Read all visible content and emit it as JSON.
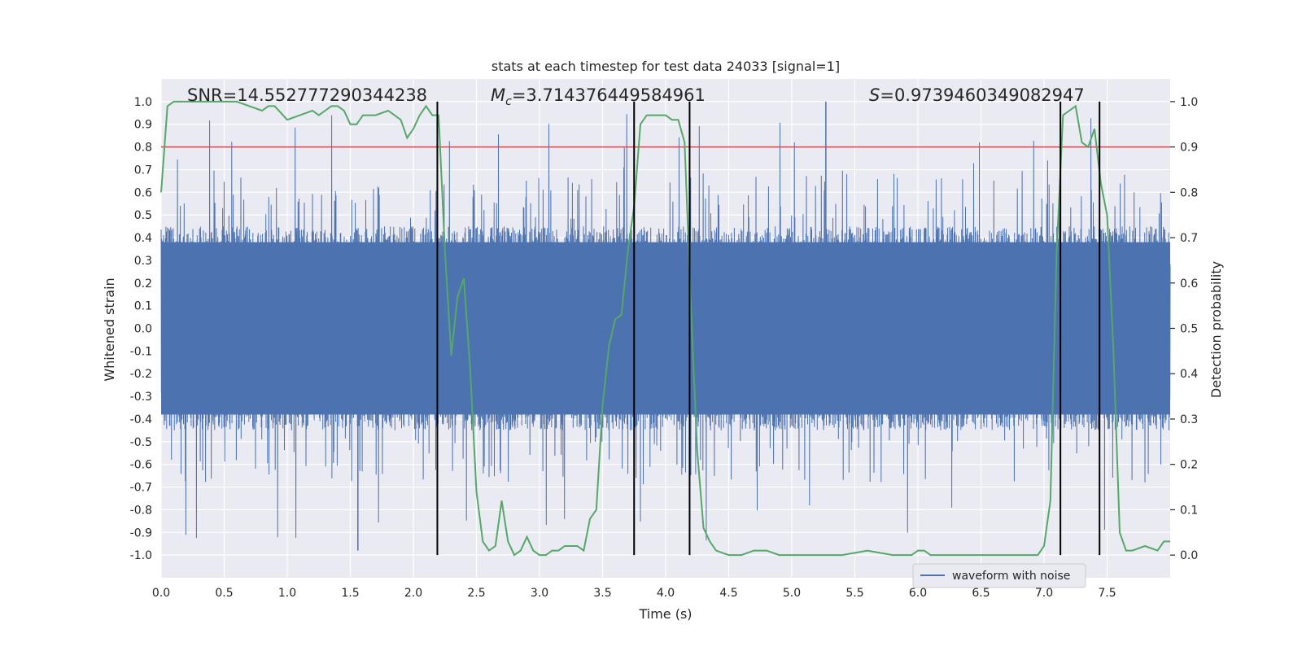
{
  "chart_data": {
    "type": "line",
    "title": "stats at each timestep for test data 24033 [signal=1]",
    "xlabel": "Time (s)",
    "ylabel": "Whitened strain",
    "y2label": "Detection probability",
    "xlim": [
      0.0,
      8.0
    ],
    "ylim": [
      -1.1,
      1.1
    ],
    "y2lim": [
      -0.05,
      1.05
    ],
    "xticks": [
      "0.0",
      "0.5",
      "1.0",
      "1.5",
      "2.0",
      "2.5",
      "3.0",
      "3.5",
      "4.0",
      "4.5",
      "5.0",
      "5.5",
      "6.0",
      "6.5",
      "7.0",
      "7.5"
    ],
    "yticks": [
      "1.0",
      "0.9",
      "0.8",
      "0.7",
      "0.6",
      "0.5",
      "0.4",
      "0.3",
      "0.2",
      "0.1",
      "0.0",
      "-0.1",
      "-0.2",
      "-0.3",
      "-0.4",
      "-0.5",
      "-0.6",
      "-0.7",
      "-0.8",
      "-0.9",
      "-1.0"
    ],
    "y2ticks": [
      "1.0",
      "0.9",
      "0.8",
      "0.7",
      "0.6",
      "0.5",
      "0.4",
      "0.3",
      "0.2",
      "0.1",
      "0.0"
    ],
    "annotations": {
      "snr": "SNR=14.552777290344238",
      "mc_symbol": "M",
      "mc_sub": "c",
      "mc_value": "=3.714376449584961",
      "s_symbol": "S",
      "s_value": "=0.9739460349082947"
    },
    "legend": {
      "label": "waveform with noise",
      "position": "lower-right"
    },
    "threshold": {
      "value": 0.8,
      "color": "#c44e52"
    },
    "vlines": [
      2.19,
      3.75,
      4.19,
      7.13,
      7.44
    ],
    "noise": {
      "color": "#4c72b0",
      "envelope": 0.45,
      "max_spike": 1.0,
      "min_spike": -0.98
    },
    "probability": {
      "color": "#55a868",
      "t": [
        0.0,
        0.05,
        0.1,
        0.2,
        0.3,
        0.4,
        0.5,
        0.6,
        0.7,
        0.8,
        0.85,
        0.9,
        1.0,
        1.1,
        1.2,
        1.25,
        1.3,
        1.35,
        1.4,
        1.45,
        1.5,
        1.55,
        1.6,
        1.7,
        1.8,
        1.85,
        1.9,
        1.95,
        2.0,
        2.05,
        2.1,
        2.15,
        2.2,
        2.25,
        2.3,
        2.35,
        2.4,
        2.45,
        2.5,
        2.55,
        2.6,
        2.65,
        2.7,
        2.75,
        2.8,
        2.85,
        2.9,
        2.95,
        3.0,
        3.05,
        3.1,
        3.15,
        3.2,
        3.25,
        3.3,
        3.35,
        3.4,
        3.45,
        3.5,
        3.55,
        3.6,
        3.65,
        3.7,
        3.75,
        3.8,
        3.85,
        3.9,
        3.95,
        4.0,
        4.05,
        4.1,
        4.15,
        4.2,
        4.25,
        4.3,
        4.35,
        4.4,
        4.5,
        4.6,
        4.7,
        4.8,
        4.9,
        5.0,
        5.2,
        5.4,
        5.6,
        5.8,
        5.95,
        6.0,
        6.05,
        6.1,
        6.2,
        6.5,
        6.8,
        6.95,
        7.0,
        7.05,
        7.1,
        7.15,
        7.2,
        7.25,
        7.3,
        7.35,
        7.4,
        7.45,
        7.5,
        7.55,
        7.6,
        7.65,
        7.7,
        7.8,
        7.9,
        7.95,
        8.0
      ],
      "p": [
        0.8,
        0.99,
        1.0,
        1.0,
        1.0,
        1.0,
        1.0,
        1.0,
        0.99,
        0.98,
        0.99,
        0.99,
        0.96,
        0.97,
        0.98,
        0.97,
        0.98,
        0.99,
        0.99,
        0.98,
        0.95,
        0.95,
        0.97,
        0.97,
        0.98,
        0.97,
        0.96,
        0.92,
        0.94,
        0.97,
        0.99,
        0.97,
        0.97,
        0.67,
        0.44,
        0.57,
        0.61,
        0.41,
        0.14,
        0.03,
        0.01,
        0.02,
        0.12,
        0.03,
        0.0,
        0.01,
        0.04,
        0.01,
        0.0,
        0.0,
        0.01,
        0.01,
        0.02,
        0.02,
        0.02,
        0.01,
        0.08,
        0.1,
        0.33,
        0.46,
        0.52,
        0.53,
        0.67,
        0.77,
        0.95,
        0.97,
        0.97,
        0.97,
        0.97,
        0.96,
        0.96,
        0.91,
        0.55,
        0.23,
        0.06,
        0.03,
        0.01,
        0.0,
        0.0,
        0.01,
        0.01,
        0.0,
        0.0,
        0.0,
        0.0,
        0.01,
        0.0,
        0.0,
        0.01,
        0.01,
        0.0,
        0.0,
        0.0,
        0.0,
        0.0,
        0.02,
        0.12,
        0.67,
        0.97,
        0.98,
        0.99,
        0.91,
        0.9,
        0.94,
        0.82,
        0.75,
        0.45,
        0.05,
        0.01,
        0.01,
        0.02,
        0.01,
        0.03,
        0.03
      ]
    }
  }
}
